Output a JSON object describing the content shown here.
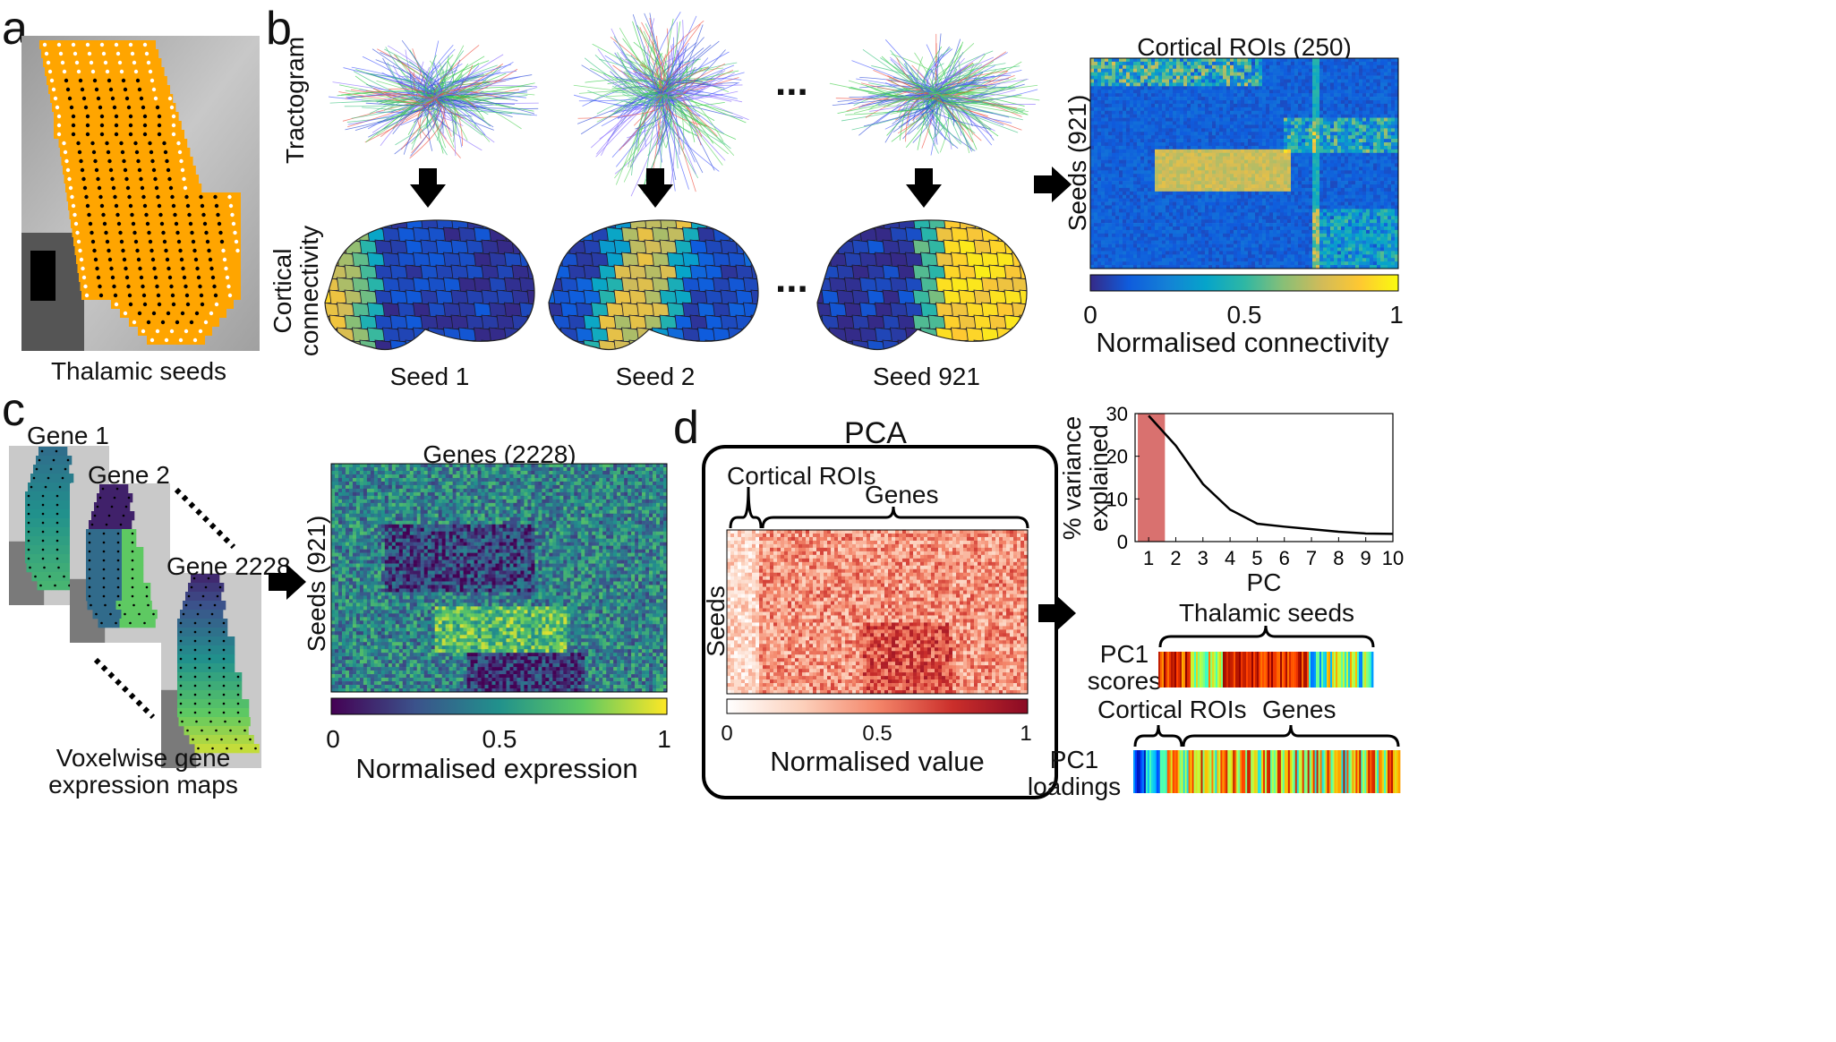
{
  "panels": {
    "a": {
      "label": "a",
      "caption": "Thalamic seeds"
    },
    "b": {
      "label": "b",
      "row_label_top": "Tractogram",
      "row_label_bottom_1": "Cortical",
      "row_label_bottom_2": "connectivity",
      "seeds": [
        "Seed 1",
        "Seed 2",
        "Seed 921"
      ],
      "ellipsis": "...",
      "matrix": {
        "title": "Cortical ROIs (250)",
        "ylabel": "Seeds (921)",
        "colorbar_label": "Normalised connectivity",
        "ticks": [
          "0",
          "0.5",
          "1"
        ],
        "colormap": [
          "#352a87",
          "#0f5cdd",
          "#1481d6",
          "#06a4ca",
          "#2eb7a4",
          "#87bf77",
          "#d1bb59",
          "#fec832",
          "#f9fb0e"
        ]
      }
    },
    "c": {
      "label": "c",
      "maps": [
        "Gene 1",
        "Gene 2",
        "Gene 2228"
      ],
      "caption_1": "Voxelwise gene",
      "caption_2": "expression maps",
      "matrix": {
        "title": "Genes (2228)",
        "ylabel": "Seeds (921)",
        "colorbar_label": "Normalised expression",
        "ticks": [
          "0",
          "0.5",
          "1"
        ],
        "colormap": [
          "#440154",
          "#3b528b",
          "#21918c",
          "#5ec962",
          "#fde725"
        ]
      }
    },
    "d": {
      "label": "d",
      "box_title": "PCA",
      "brace_left": "Cortical ROIs",
      "brace_right": "Genes",
      "ylabel": "Seeds",
      "colorbar_label": "Normalised value",
      "ticks": [
        "0",
        "0.5",
        "1"
      ],
      "colormap": [
        "#ffffff",
        "#fcd0bb",
        "#f4866a",
        "#cb2f2b",
        "#8a0a24"
      ],
      "scores_brace": "Thalamic seeds",
      "scores_label_1": "PC1",
      "scores_label_2": "scores",
      "loadings_brace_left": "Cortical ROIs",
      "loadings_brace_right": "Genes",
      "loadings_label_1": "PC1",
      "loadings_label_2": "loadings"
    }
  },
  "chart_data": {
    "type": "line",
    "xlabel": "PC",
    "ylabel_1": "% variance",
    "ylabel_2": "explained",
    "x": [
      1,
      2,
      3,
      4,
      5,
      6,
      7,
      8,
      9,
      10
    ],
    "values": [
      29.5,
      22.5,
      13.5,
      7.5,
      4.2,
      3.5,
      2.9,
      2.3,
      1.9,
      1.8
    ],
    "xlim": [
      0.5,
      10
    ],
    "ylim": [
      0,
      30
    ],
    "yticks": [
      0,
      10,
      20,
      30
    ],
    "highlight": {
      "x_from": 0.6,
      "x_to": 1.6,
      "color": "#d9716f"
    },
    "grid": false
  }
}
